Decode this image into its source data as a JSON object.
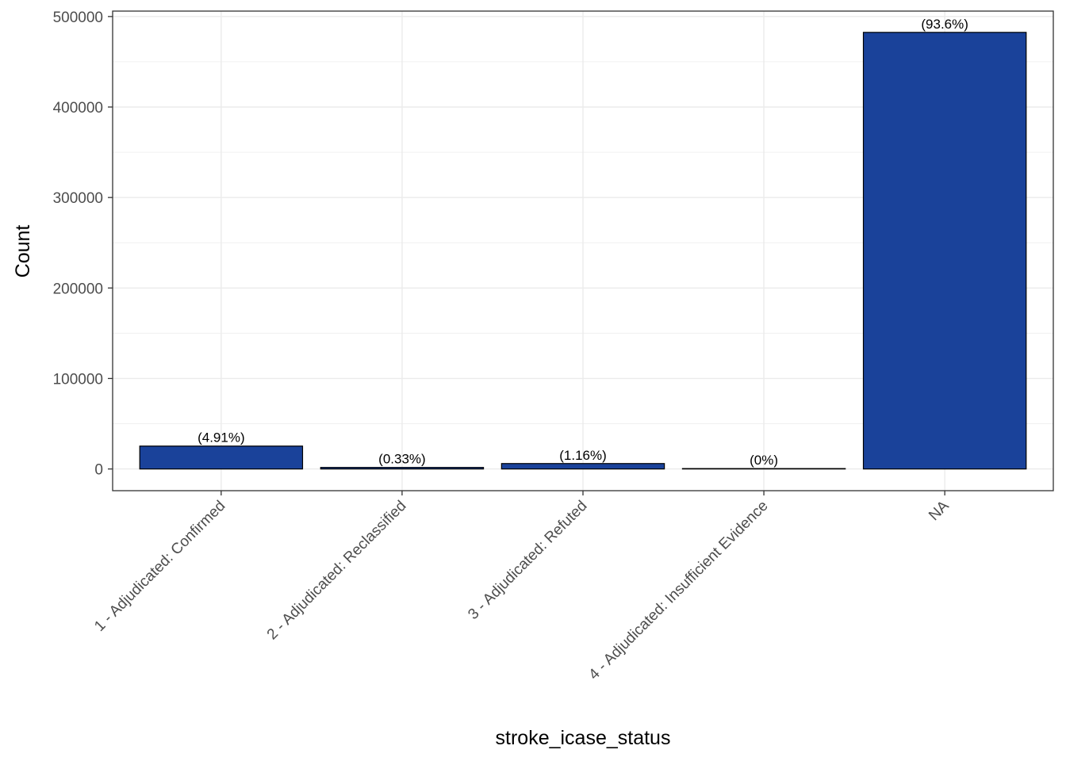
{
  "chart_data": {
    "type": "bar",
    "categories": [
      "1 - Adjudicated: Confirmed",
      "2 - Adjudicated: Reclassified",
      "3 - Adjudicated: Refuted",
      "4 - Adjudicated: Insufficient Evidence",
      "NA"
    ],
    "values": [
      25300,
      1700,
      6000,
      10,
      482500
    ],
    "data_labels": [
      "(4.91%)",
      "(0.33%)",
      "(1.16%)",
      "(0%)",
      "(93.6%)"
    ],
    "xlabel": "stroke_icase_status",
    "ylabel": "Count",
    "ylim": [
      -24000,
      506000
    ],
    "yticks": [
      0,
      100000,
      200000,
      300000,
      400000,
      500000
    ],
    "ytick_labels": [
      "0",
      "100000",
      "200000",
      "300000",
      "400000",
      "500000"
    ],
    "grid": true,
    "bar_color": "#1a429a",
    "bar_outline": "#000000"
  }
}
